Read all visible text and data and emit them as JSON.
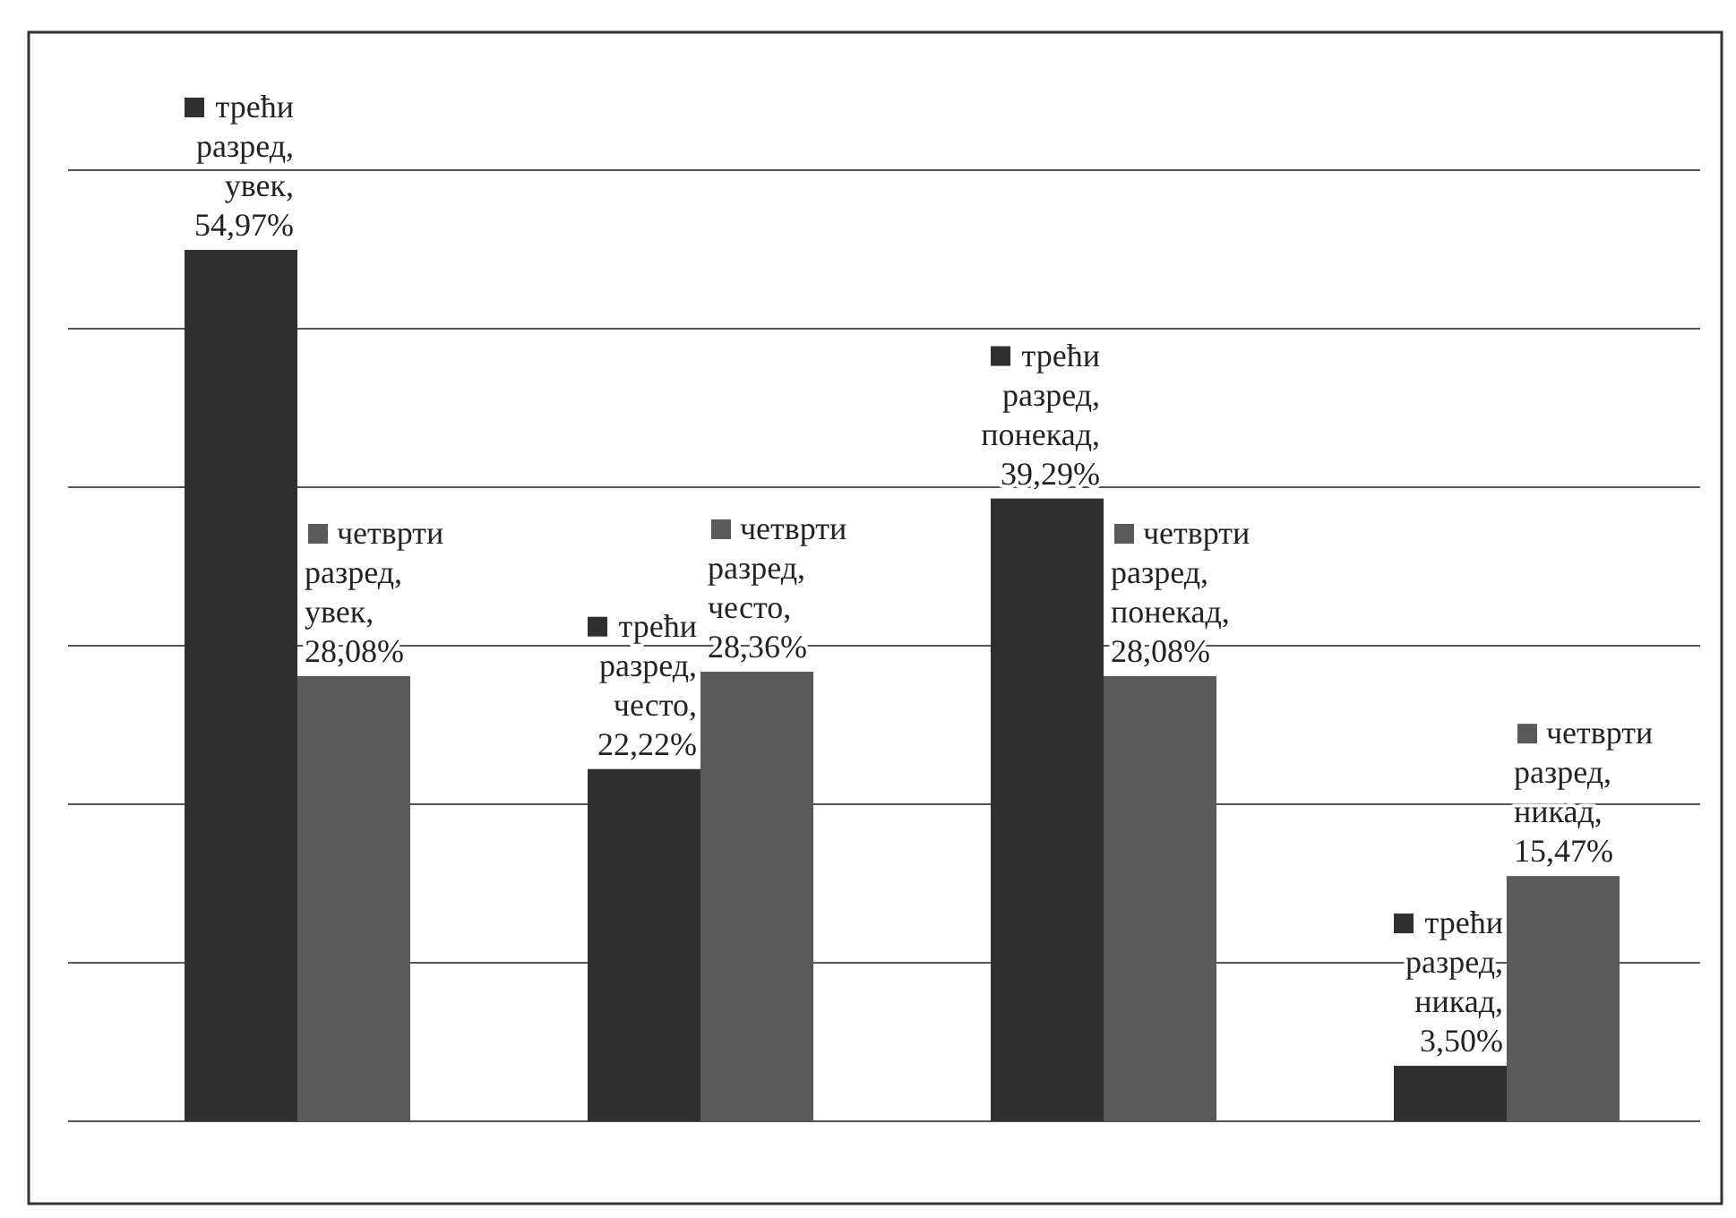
{
  "chart_data": {
    "type": "bar",
    "categories": [
      null,
      null,
      null,
      null
    ],
    "series": [
      {
        "color": "#2f2f2f",
        "values": [
          54.97,
          22.22,
          39.29,
          3.5
        ],
        "value_labels": [
          "трећи разред, увек, 54,97%",
          "трећи разред, често, 22,22%",
          "трећи разред, понекад, 39,29%",
          "трећи разред, никад, 3,50%"
        ]
      },
      {
        "color": "#5a5a5a",
        "values": [
          28.08,
          28.36,
          28.08,
          15.47
        ],
        "value_labels": [
          "четврти разред, увек, 28,08%",
          "четврти разред, често, 28,36%",
          "четврти разред, понекад, 28,08%",
          "четврти разред, никад, 15,47%"
        ]
      }
    ],
    "ylim": [
      0,
      60
    ],
    "yticks": [
      {
        "value": 0,
        "label": null
      },
      {
        "value": 10,
        "label": null
      },
      {
        "value": 20,
        "label": null
      },
      {
        "value": 30,
        "label": null
      },
      {
        "value": 40,
        "label": null
      },
      {
        "value": 50,
        "label": null
      },
      {
        "value": 60,
        "label": null
      }
    ],
    "grid": "y",
    "tick_labels": false
  }
}
